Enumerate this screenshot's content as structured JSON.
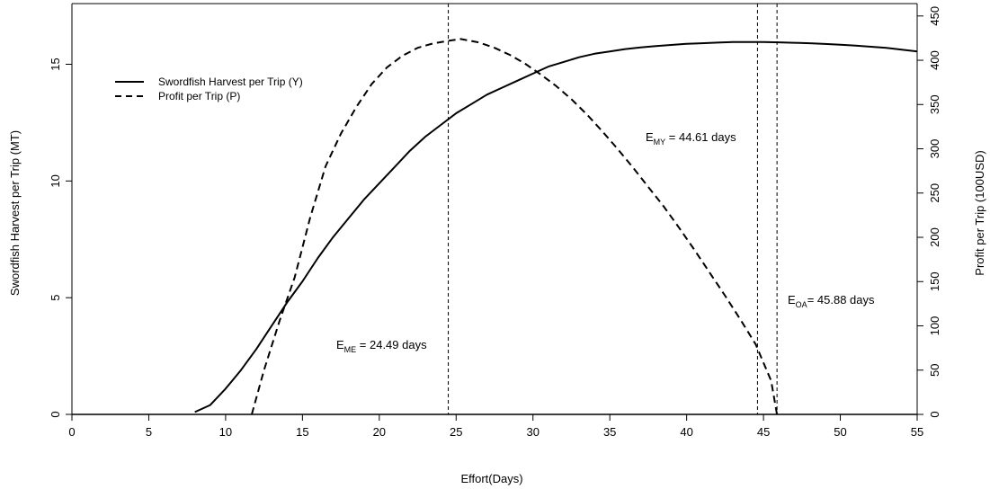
{
  "chart_data": {
    "type": "line",
    "xlabel": "Effort(Days)",
    "ylabel_left": "Swordfish Harvest per Trip (MT)",
    "ylabel_right": "Profit per Trip (100USD)",
    "xlim": [
      0,
      55
    ],
    "ylim_left": [
      0,
      17.6
    ],
    "ylim_right": [
      0,
      464
    ],
    "x_ticks": [
      0,
      5,
      10,
      15,
      20,
      25,
      30,
      35,
      40,
      45,
      50,
      55
    ],
    "y_ticks_left": [
      0,
      5,
      10,
      15
    ],
    "y_ticks_right": [
      0,
      50,
      100,
      150,
      200,
      250,
      300,
      350,
      400,
      450
    ],
    "grid": false,
    "legend_position": "upper-left",
    "series": [
      {
        "name": "Swordfish Harvest per Trip (Y)",
        "axis": "left",
        "style": "solid",
        "x": [
          8,
          9,
          10,
          11,
          12,
          13,
          14,
          15,
          16,
          17,
          18,
          19,
          20,
          21,
          22,
          23,
          24,
          25,
          26,
          27,
          28,
          29,
          30,
          31,
          32,
          33,
          34,
          35,
          36,
          37,
          38,
          39,
          40,
          41,
          42,
          43,
          44,
          45,
          46,
          47,
          48,
          49,
          50,
          51,
          52,
          53,
          54,
          55
        ],
        "y": [
          0.1,
          0.4,
          1.1,
          1.9,
          2.8,
          3.8,
          4.8,
          5.7,
          6.7,
          7.6,
          8.4,
          9.2,
          9.9,
          10.6,
          11.3,
          11.9,
          12.4,
          12.9,
          13.3,
          13.7,
          14.0,
          14.3,
          14.6,
          14.9,
          15.1,
          15.3,
          15.45,
          15.55,
          15.65,
          15.72,
          15.78,
          15.83,
          15.88,
          15.9,
          15.93,
          15.95,
          15.95,
          15.95,
          15.94,
          15.92,
          15.9,
          15.87,
          15.84,
          15.8,
          15.75,
          15.7,
          15.63,
          15.55
        ]
      },
      {
        "name": "Profit per Trip (P)",
        "axis": "right",
        "style": "dashed",
        "x": [
          11.7,
          12.5,
          13.5,
          14.5,
          15.5,
          16.5,
          17.5,
          18.5,
          19.5,
          20.5,
          21.5,
          22.5,
          23.5,
          24.5,
          25.3,
          26.5,
          27.5,
          28.5,
          29.5,
          30.5,
          31.5,
          32.5,
          33.5,
          34.5,
          35.5,
          36.5,
          37.5,
          38.5,
          39.5,
          40.5,
          41.5,
          42.5,
          43.5,
          44.5,
          45.5,
          45.88
        ],
        "y": [
          0,
          50,
          105,
          155,
          222,
          280,
          317,
          347,
          373,
          392,
          405,
          414,
          419,
          422,
          424,
          420,
          414,
          406,
          396,
          384,
          371,
          356,
          339,
          320,
          300,
          279,
          257,
          235,
          211,
          186,
          160,
          134,
          107,
          79,
          38,
          0
        ]
      }
    ],
    "vlines": [
      24.49,
      44.61,
      45.88
    ],
    "annotations": [
      {
        "id": "eme",
        "base": "E",
        "sub": "ME",
        "text": " = 24.49 days",
        "x": 24.49
      },
      {
        "id": "emy",
        "base": "E",
        "sub": "MY",
        "text": " = 44.61 days",
        "x": 44.61
      },
      {
        "id": "eoa",
        "base": "E",
        "sub": "OA",
        "text": "= 45.88 days",
        "x": 45.88
      }
    ]
  }
}
